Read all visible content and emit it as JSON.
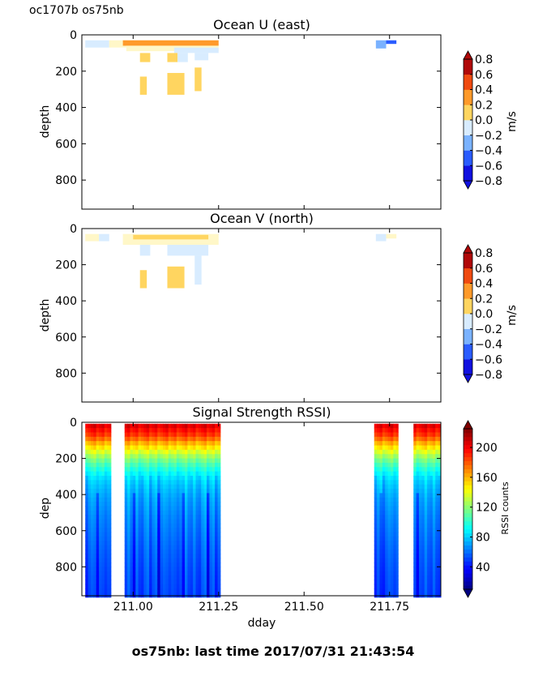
{
  "figure": {
    "corner_label": "oc1707b os75nb",
    "footer": "os75nb: last time 2017/07/31 21:43:54"
  },
  "chart_data": [
    {
      "type": "heatmap",
      "title": "Ocean U (east)",
      "ylabel": "depth",
      "xlabel": "",
      "xlim": [
        210.85,
        211.9
      ],
      "ylim": [
        960,
        0
      ],
      "y_ticks": [
        "0",
        "200",
        "400",
        "600",
        "800"
      ],
      "x_ticks": [
        "211.00",
        "211.25",
        "211.50",
        "211.75"
      ],
      "x_tick_labels_visible": false,
      "colorbar": {
        "label": "m/s",
        "ticks": [
          "0.8",
          "0.6",
          "0.4",
          "0.2",
          "0.0",
          "−0.2",
          "−0.4",
          "−0.6",
          "−0.8"
        ],
        "colors": [
          "#1010e0",
          "#2a5cff",
          "#7ab2ff",
          "#d8ecff",
          "#fff7c8",
          "#ffd560",
          "#ff9a2a",
          "#f04a10",
          "#b00808"
        ]
      },
      "cells": [
        {
          "x0": 210.86,
          "x1": 210.93,
          "d0": 30,
          "d1": 70,
          "v": -0.1
        },
        {
          "x0": 210.93,
          "x1": 210.98,
          "d0": 30,
          "d1": 70,
          "v": 0.05
        },
        {
          "x0": 210.97,
          "x1": 211.25,
          "d0": 30,
          "d1": 60,
          "v": 0.45
        },
        {
          "x0": 211.0,
          "x1": 211.2,
          "d0": 40,
          "d1": 55,
          "v": 0.6
        },
        {
          "x0": 210.98,
          "x1": 211.25,
          "d0": 60,
          "d1": 90,
          "v": 0.1
        },
        {
          "x0": 211.12,
          "x1": 211.25,
          "d0": 70,
          "d1": 100,
          "v": -0.1
        },
        {
          "x0": 211.02,
          "x1": 211.05,
          "d0": 100,
          "d1": 150,
          "v": 0.3
        },
        {
          "x0": 211.1,
          "x1": 211.13,
          "d0": 100,
          "d1": 150,
          "v": 0.3
        },
        {
          "x0": 211.13,
          "x1": 211.16,
          "d0": 100,
          "d1": 150,
          "v": -0.1
        },
        {
          "x0": 211.18,
          "x1": 211.22,
          "d0": 100,
          "d1": 140,
          "v": -0.1
        },
        {
          "x0": 211.02,
          "x1": 211.04,
          "d0": 230,
          "d1": 330,
          "v": 0.3
        },
        {
          "x0": 211.1,
          "x1": 211.15,
          "d0": 210,
          "d1": 330,
          "v": 0.3
        },
        {
          "x0": 211.18,
          "x1": 211.2,
          "d0": 180,
          "d1": 310,
          "v": 0.3
        },
        {
          "x0": 211.71,
          "x1": 211.74,
          "d0": 30,
          "d1": 75,
          "v": -0.3
        },
        {
          "x0": 211.74,
          "x1": 211.77,
          "d0": 30,
          "d1": 50,
          "v": -0.55
        }
      ]
    },
    {
      "type": "heatmap",
      "title": "Ocean V (north)",
      "ylabel": "depth",
      "xlabel": "",
      "xlim": [
        210.85,
        211.9
      ],
      "ylim": [
        960,
        0
      ],
      "y_ticks": [
        "0",
        "200",
        "400",
        "600",
        "800"
      ],
      "x_ticks": [
        "211.00",
        "211.25",
        "211.50",
        "211.75"
      ],
      "x_tick_labels_visible": false,
      "colorbar": {
        "label": "m/s",
        "ticks": [
          "0.8",
          "0.6",
          "0.4",
          "0.2",
          "0.0",
          "−0.2",
          "−0.4",
          "−0.6",
          "−0.8"
        ],
        "colors": [
          "#1010e0",
          "#2a5cff",
          "#7ab2ff",
          "#d8ecff",
          "#fff7c8",
          "#ffd560",
          "#ff9a2a",
          "#f04a10",
          "#b00808"
        ]
      },
      "cells": [
        {
          "x0": 210.86,
          "x1": 210.9,
          "d0": 30,
          "d1": 70,
          "v": 0.05
        },
        {
          "x0": 210.9,
          "x1": 210.93,
          "d0": 30,
          "d1": 70,
          "v": -0.1
        },
        {
          "x0": 210.97,
          "x1": 211.25,
          "d0": 30,
          "d1": 90,
          "v": 0.1
        },
        {
          "x0": 211.0,
          "x1": 211.22,
          "d0": 35,
          "d1": 60,
          "v": 0.35
        },
        {
          "x0": 211.02,
          "x1": 211.05,
          "d0": 90,
          "d1": 150,
          "v": -0.1
        },
        {
          "x0": 211.1,
          "x1": 211.22,
          "d0": 90,
          "d1": 150,
          "v": -0.1
        },
        {
          "x0": 211.18,
          "x1": 211.2,
          "d0": 150,
          "d1": 310,
          "v": -0.1
        },
        {
          "x0": 211.02,
          "x1": 211.04,
          "d0": 230,
          "d1": 330,
          "v": 0.3
        },
        {
          "x0": 211.1,
          "x1": 211.15,
          "d0": 210,
          "d1": 330,
          "v": 0.3
        },
        {
          "x0": 211.71,
          "x1": 211.74,
          "d0": 30,
          "d1": 70,
          "v": -0.1
        },
        {
          "x0": 211.74,
          "x1": 211.77,
          "d0": 30,
          "d1": 55,
          "v": 0.05
        }
      ]
    },
    {
      "type": "heatmap",
      "title": "Signal Strength RSSI)",
      "ylabel": "dep",
      "xlabel": "dday",
      "xlim": [
        210.85,
        211.9
      ],
      "ylim": [
        960,
        0
      ],
      "y_ticks": [
        "0",
        "200",
        "400",
        "600",
        "800"
      ],
      "x_ticks": [
        "211.00",
        "211.25",
        "211.50",
        "211.75"
      ],
      "x_tick_labels_visible": true,
      "colorbar": {
        "label": "RSSI counts",
        "ticks": [
          "200",
          "160",
          "120",
          "80",
          "40"
        ],
        "range": [
          10,
          225
        ]
      },
      "profile_depths": [
        20,
        50,
        80,
        110,
        140,
        170,
        200,
        240,
        280,
        340,
        420,
        520,
        620,
        720,
        820,
        900,
        960
      ],
      "profile_rssi": [
        205,
        195,
        185,
        165,
        150,
        135,
        120,
        105,
        92,
        82,
        74,
        68,
        64,
        60,
        57,
        55,
        54
      ],
      "segments": [
        {
          "x0": 210.86,
          "x1": 210.935
        },
        {
          "x0": 210.975,
          "x1": 211.255
        },
        {
          "x0": 211.705,
          "x1": 211.775
        },
        {
          "x0": 211.82,
          "x1": 211.9
        }
      ]
    }
  ]
}
